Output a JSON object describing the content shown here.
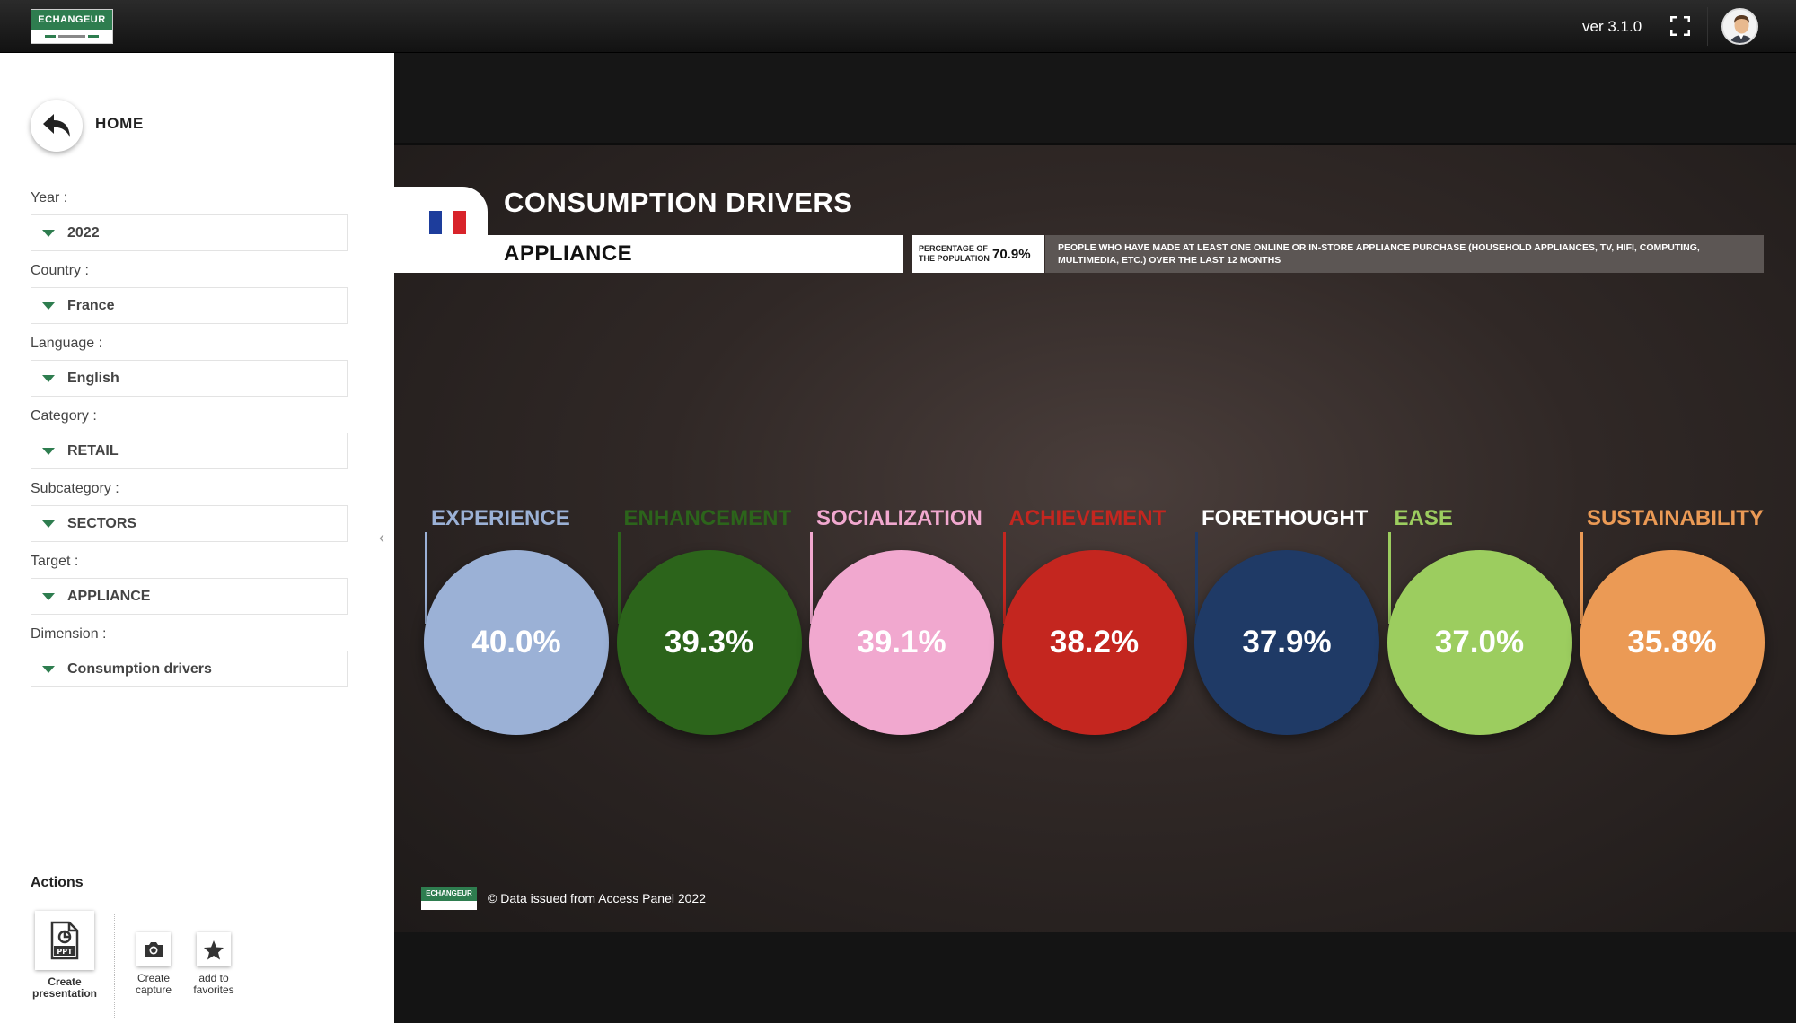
{
  "topbar": {
    "logo_text": "ECHANGEUR",
    "version": "ver 3.1.0",
    "fullscreen_icon": "fullscreen-icon",
    "avatar_icon": "user-avatar"
  },
  "sidebar": {
    "home_label": "HOME",
    "filters": [
      {
        "label": "Year :",
        "value": "2022"
      },
      {
        "label": "Country :",
        "value": "France"
      },
      {
        "label": "Language :",
        "value": "English"
      },
      {
        "label": "Category :",
        "value": "RETAIL"
      },
      {
        "label": "Subcategory :",
        "value": "SECTORS"
      },
      {
        "label": "Target :",
        "value": "APPLIANCE"
      },
      {
        "label": "Dimension :",
        "value": "Consumption drivers"
      }
    ],
    "actions_title": "Actions",
    "actions": [
      {
        "label": "Create presentation",
        "icon": "ppt-icon"
      },
      {
        "label": "Create capture",
        "icon": "camera-icon"
      },
      {
        "label": "add to favorites",
        "icon": "star-icon"
      }
    ]
  },
  "report": {
    "title": "CONSUMPTION DRIVERS",
    "subtitle": "APPLIANCE",
    "country_flag": "france-flag",
    "population_label": "PERCENTAGE OF THE POPULATION",
    "population_value": "70.9%",
    "description": "PEOPLE WHO HAVE MADE AT LEAST ONE ONLINE OR IN-STORE APPLIANCE PURCHASE (HOUSEHOLD APPLIANCES, TV, HIFI, COMPUTING, MULTIMEDIA, ETC.) OVER THE LAST 12 MONTHS",
    "footer_text": "© Data issued from Access Panel 2022"
  },
  "chart_data": {
    "type": "bubble",
    "categories": [
      "EXPERIENCE",
      "ENHANCEMENT",
      "SOCIALIZATION",
      "ACHIEVEMENT",
      "FORETHOUGHT",
      "EASE",
      "SUSTAINABILITY"
    ],
    "values": [
      40.0,
      39.3,
      39.1,
      38.2,
      37.9,
      37.0,
      35.8
    ],
    "value_labels": [
      "40.0%",
      "39.3%",
      "39.1%",
      "38.2%",
      "37.9%",
      "37.0%",
      "35.8%"
    ],
    "colors": [
      "#9bb1d6",
      "#2c641b",
      "#f1a8cf",
      "#c4261f",
      "#1f3a66",
      "#9ccd5f",
      "#eb9a55"
    ],
    "label_colors": [
      "#9bb1d6",
      "#2c641b",
      "#f1a8cf",
      "#c4261f",
      "#ffffff",
      "#9ccd5f",
      "#eb9a55"
    ]
  }
}
